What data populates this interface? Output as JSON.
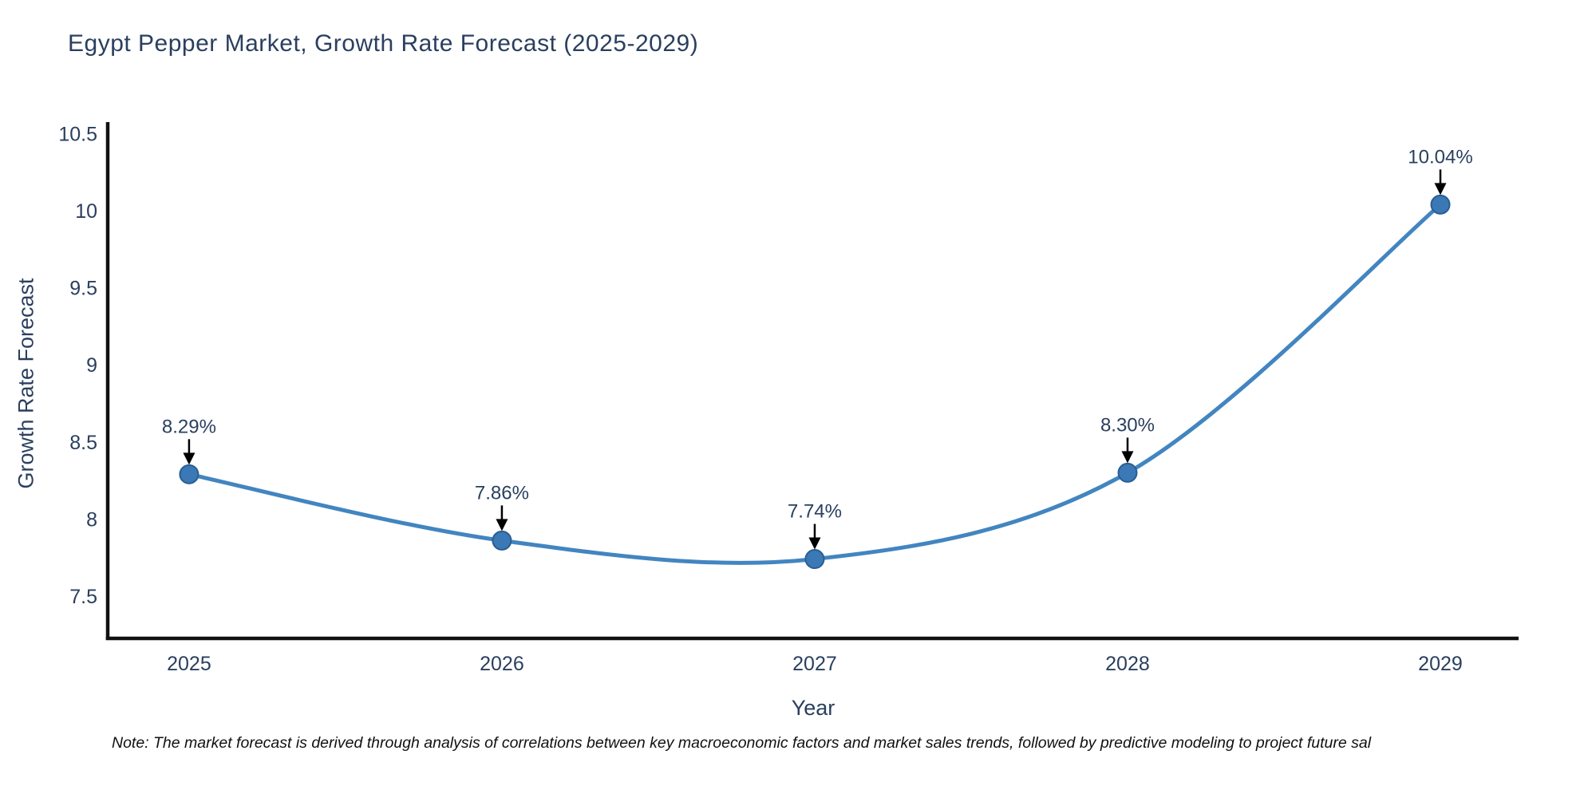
{
  "note": "Note: The market forecast is derived through analysis of correlations between key macroeconomic factors and market sales trends, followed by predictive modeling to project future sal",
  "chart_data": {
    "type": "line",
    "title": "Egypt Pepper Market, Growth Rate Forecast (2025-2029)",
    "xlabel": "Year",
    "ylabel": "Growth Rate Forecast",
    "line_shape": "spline",
    "grid": false,
    "legend_position": "none",
    "x": [
      2025,
      2026,
      2027,
      2028,
      2029
    ],
    "values": [
      8.29,
      7.86,
      7.74,
      8.3,
      10.04
    ],
    "point_labels": [
      "8.29%",
      "7.86%",
      "7.74%",
      "8.30%",
      "10.04%"
    ],
    "xlim": [
      2024.74,
      2029.25
    ],
    "ylim": [
      7.225,
      10.565
    ],
    "xticks": {
      "values": [
        2025,
        2026,
        2027,
        2028,
        2029
      ],
      "labels": [
        "2025",
        "2026",
        "2027",
        "2028",
        "2029"
      ]
    },
    "yticks": {
      "values": [
        7.5,
        8,
        8.5,
        9,
        9.5,
        10,
        10.5
      ],
      "labels": [
        "7.5",
        "8",
        "8.5",
        "9",
        "9.5",
        "10",
        "10.5"
      ]
    },
    "colors": {
      "line": "#4285c0",
      "marker_fill": "#3a78b6",
      "marker_edge": "#2a5e92",
      "arrow": "#000000",
      "annotation_text": "#2a3f5f",
      "axis": "#111111",
      "tick_text": "#2a3f5f",
      "title_text": "#2a3f5f",
      "note_text": "#111111",
      "background": "#ffffff"
    }
  }
}
